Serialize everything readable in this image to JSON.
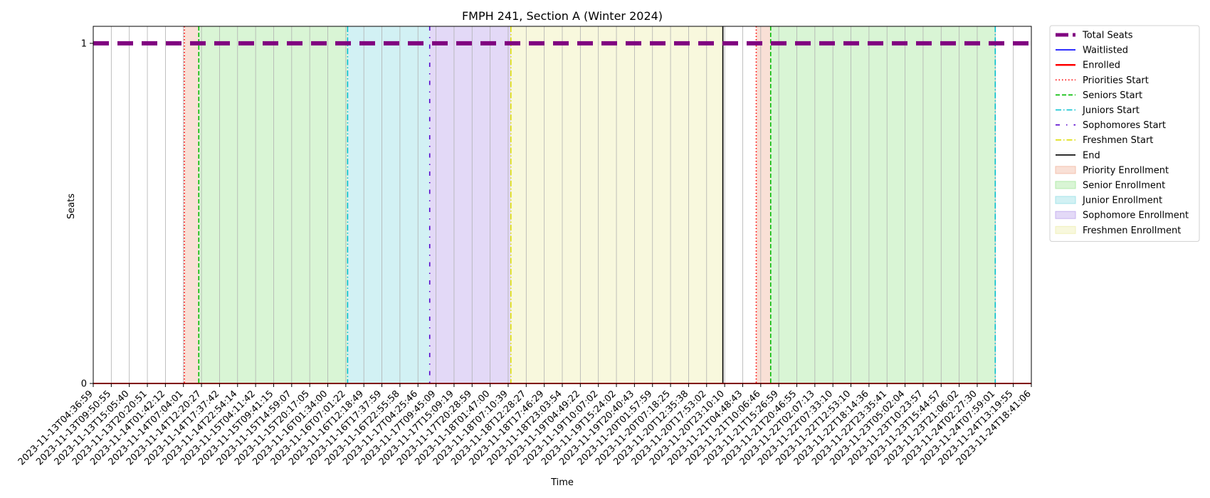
{
  "chart_data": {
    "type": "line",
    "title": "FMPH 241, Section A (Winter 2024)",
    "xlabel": "Time",
    "ylabel": "Seats",
    "ylim": [
      0,
      1.05
    ],
    "yticks": [
      0,
      1
    ],
    "x_categories": [
      "2023-11-13T04:36:59",
      "2023-11-13T09:50:55",
      "2023-11-13T15:05:40",
      "2023-11-13T20:20:51",
      "2023-11-14T01:42:12",
      "2023-11-14T07:04:01",
      "2023-11-14T12:20:27",
      "2023-11-14T17:37:42",
      "2023-11-14T22:54:14",
      "2023-11-15T04:11:42",
      "2023-11-15T09:41:15",
      "2023-11-15T14:59:07",
      "2023-11-15T20:17:05",
      "2023-11-16T01:34:00",
      "2023-11-16T07:01:22",
      "2023-11-16T12:18:49",
      "2023-11-16T17:37:59",
      "2023-11-16T22:55:58",
      "2023-11-17T04:25:46",
      "2023-11-17T09:45:09",
      "2023-11-17T15:09:19",
      "2023-11-17T20:28:59",
      "2023-11-18T01:47:00",
      "2023-11-18T07:10:39",
      "2023-11-18T12:28:27",
      "2023-11-18T17:46:29",
      "2023-11-18T23:03:54",
      "2023-11-19T04:49:22",
      "2023-11-19T10:07:02",
      "2023-11-19T15:24:02",
      "2023-11-19T20:40:43",
      "2023-11-20T01:57:59",
      "2023-11-20T07:18:25",
      "2023-11-20T12:35:38",
      "2023-11-20T17:53:02",
      "2023-11-20T23:10:10",
      "2023-11-21T04:48:43",
      "2023-11-21T10:06:46",
      "2023-11-21T15:26:59",
      "2023-11-21T20:46:55",
      "2023-11-22T02:07:13",
      "2023-11-22T07:33:10",
      "2023-11-22T12:53:10",
      "2023-11-22T18:14:36",
      "2023-11-22T23:35:41",
      "2023-11-23T05:02:04",
      "2023-11-23T10:23:57",
      "2023-11-23T15:44:57",
      "2023-11-23T21:06:02",
      "2023-11-24T02:27:30",
      "2023-11-24T07:59:01",
      "2023-11-24T13:19:55",
      "2023-11-24T18:41:06"
    ],
    "series": [
      {
        "name": "Total Seats",
        "color": "#800080",
        "style": "dashed-thick",
        "values": "constant",
        "value": 1
      },
      {
        "name": "Waitlisted",
        "color": "#0000ff",
        "style": "solid",
        "value": 0
      },
      {
        "name": "Enrolled",
        "color": "#ff0000",
        "style": "solid",
        "value": 0
      }
    ],
    "markers": [
      {
        "name": "Priorities Start",
        "x": 5.05,
        "color": "#ff0000",
        "style": "dotted"
      },
      {
        "name": "Seniors Start",
        "x": 5.85,
        "color": "#00bb00",
        "style": "dashed"
      },
      {
        "name": "Juniors Start",
        "x": 14.1,
        "color": "#00bfcf",
        "style": "dashdot"
      },
      {
        "name": "Sophomores Start",
        "x": 18.65,
        "color": "#5500cc",
        "style": "loosedashdot"
      },
      {
        "name": "Freshmen Start",
        "x": 23.15,
        "color": "#dddd00",
        "style": "dashdot"
      },
      {
        "name": "End",
        "x": 34.9,
        "color": "#000000",
        "style": "solid"
      },
      {
        "name": "Priorities Start",
        "x": 36.75,
        "color": "#ff0000",
        "style": "dotted"
      },
      {
        "name": "Seniors Start",
        "x": 37.55,
        "color": "#00bb00",
        "style": "dashed"
      },
      {
        "name": "Juniors Start",
        "x": 50.0,
        "color": "#00bfcf",
        "style": "dashdot"
      }
    ],
    "spans": [
      {
        "name": "Priority Enrollment",
        "from": 5.05,
        "to": 5.85,
        "color": "#f4c2ae"
      },
      {
        "name": "Senior Enrollment",
        "from": 5.85,
        "to": 14.1,
        "color": "#b3ebab"
      },
      {
        "name": "Junior Enrollment",
        "from": 14.1,
        "to": 18.65,
        "color": "#a6e4ea"
      },
      {
        "name": "Sophomore Enrollment",
        "from": 18.65,
        "to": 23.15,
        "color": "#c8b4f0"
      },
      {
        "name": "Freshmen Enrollment",
        "from": 23.15,
        "to": 34.9,
        "color": "#f1f1bc"
      },
      {
        "name": "Priority Enrollment",
        "from": 36.75,
        "to": 37.55,
        "color": "#f4c2ae"
      },
      {
        "name": "Senior Enrollment",
        "from": 37.55,
        "to": 50.0,
        "color": "#b3ebab"
      }
    ],
    "legend_position": "outside-top-right",
    "legend": [
      {
        "label": "Total Seats",
        "kind": "line",
        "color": "#800080",
        "style": "dashed-thick"
      },
      {
        "label": "Waitlisted",
        "kind": "line",
        "color": "#0000ff",
        "style": "solid"
      },
      {
        "label": "Enrolled",
        "kind": "line",
        "color": "#ff0000",
        "style": "solid-thick"
      },
      {
        "label": "Priorities Start",
        "kind": "line",
        "color": "#ff0000",
        "style": "dotted"
      },
      {
        "label": "Seniors Start",
        "kind": "line",
        "color": "#00bb00",
        "style": "dashed"
      },
      {
        "label": "Juniors Start",
        "kind": "line",
        "color": "#00bfcf",
        "style": "dashdot"
      },
      {
        "label": "Sophomores Start",
        "kind": "line",
        "color": "#5500cc",
        "style": "loosedashdot"
      },
      {
        "label": "Freshmen Start",
        "kind": "line",
        "color": "#dddd00",
        "style": "dashdot"
      },
      {
        "label": "End",
        "kind": "line",
        "color": "#000000",
        "style": "solid"
      },
      {
        "label": "Priority Enrollment",
        "kind": "patch",
        "color": "#f4c2ae"
      },
      {
        "label": "Senior Enrollment",
        "kind": "patch",
        "color": "#b3ebab"
      },
      {
        "label": "Junior Enrollment",
        "kind": "patch",
        "color": "#a6e4ea"
      },
      {
        "label": "Sophomore Enrollment",
        "kind": "patch",
        "color": "#c8b4f0"
      },
      {
        "label": "Freshmen Enrollment",
        "kind": "patch",
        "color": "#f1f1bc"
      }
    ],
    "grid": "vertical"
  }
}
